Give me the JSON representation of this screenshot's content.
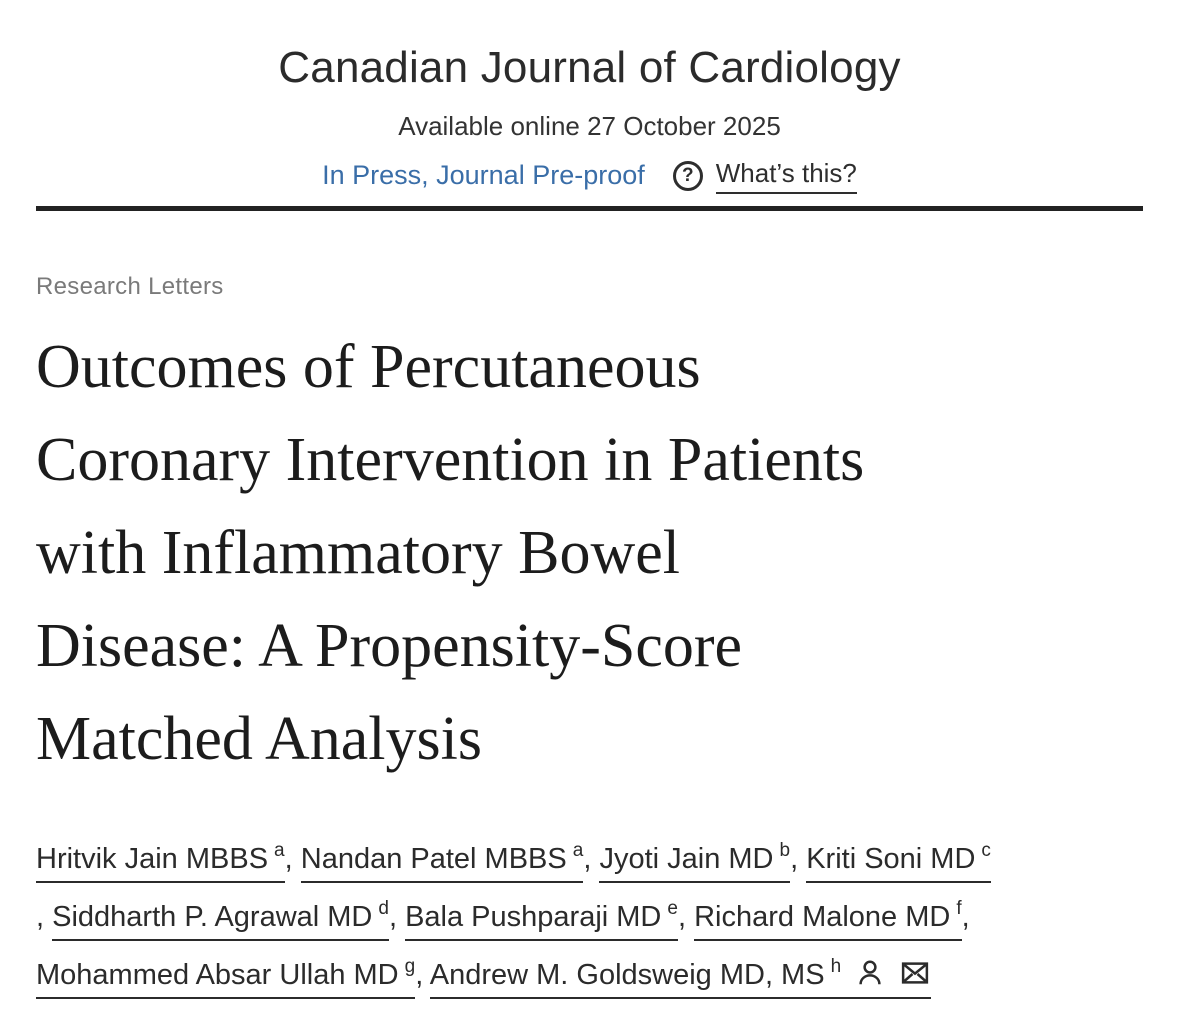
{
  "header": {
    "journal_title": "Canadian Journal of Cardiology",
    "available_online": "Available online 27 October 2025",
    "in_press": "In Press, Journal Pre-proof",
    "question_glyph": "?",
    "whats_this": "What’s this?"
  },
  "article": {
    "section": "Research Letters",
    "title_lines": [
      "Outcomes of Percutaneous",
      "Coronary Intervention in Patients",
      "with Inflammatory Bowel",
      "Disease: A Propensity-Score",
      "Matched Analysis"
    ]
  },
  "byline": {
    "separator": ", ",
    "lines": [
      {
        "prefix": "",
        "suffix": "",
        "authors": [
          {
            "name": "Hritvik Jain MBBS",
            "sup": "a"
          },
          {
            "name": "Nandan Patel MBBS",
            "sup": "a"
          },
          {
            "name": "Jyoti Jain MD",
            "sup": "b"
          },
          {
            "name": "Kriti Soni MD",
            "sup": "c"
          }
        ]
      },
      {
        "prefix": ", ",
        "suffix": ",",
        "authors": [
          {
            "name": "Siddharth P. Agrawal MD",
            "sup": "d"
          },
          {
            "name": "Bala Pushparaji MD",
            "sup": "e"
          },
          {
            "name": "Richard Malone MD",
            "sup": "f"
          }
        ]
      },
      {
        "prefix": "",
        "suffix": "",
        "authors": [
          {
            "name": "Mohammed Absar Ullah MD",
            "sup": "g"
          },
          {
            "name": "Andrew M. Goldsweig MD, MS",
            "sup": "h",
            "has_icons": true
          }
        ]
      }
    ]
  },
  "icons": {
    "question": "question-circle-icon",
    "author_profile": "person-icon",
    "correspondence": "envelope-icon"
  },
  "colors": {
    "link_blue": "#3a6ea8",
    "text_dark": "#2b2b2b",
    "title_black": "#1c1c1c",
    "muted_gray": "#7a7a7a",
    "divider": "#222222"
  }
}
